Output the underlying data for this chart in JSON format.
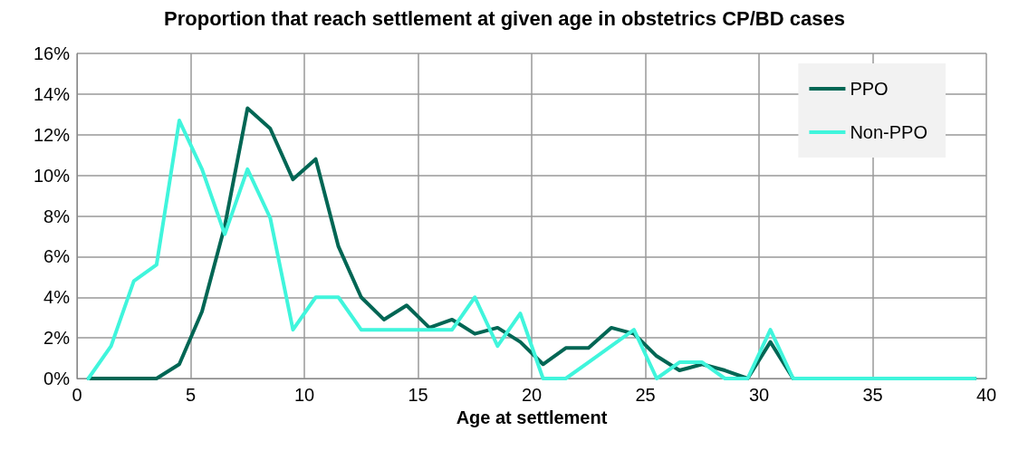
{
  "chart_data": {
    "type": "line",
    "title": "Proportion that reach settlement at given age in obstetrics CP/BD cases",
    "xlabel": "Age at settlement",
    "x": [
      0.5,
      1.5,
      2.5,
      3.5,
      4.5,
      5.5,
      6.5,
      7.5,
      8.5,
      9.5,
      10.5,
      11.5,
      12.5,
      13.5,
      14.5,
      15.5,
      16.5,
      17.5,
      18.5,
      19.5,
      20.5,
      21.5,
      22.5,
      23.5,
      24.5,
      25.5,
      26.5,
      27.5,
      28.5,
      29.5,
      30.5,
      31.5,
      32.5,
      33.5,
      34.5,
      35.5,
      36.5,
      37.5,
      38.5,
      39.5
    ],
    "series": [
      {
        "name": "PPO",
        "color": "#006654",
        "values": [
          0,
          0,
          0,
          0,
          0.7,
          3.3,
          7.5,
          13.3,
          12.3,
          9.8,
          10.8,
          6.5,
          4.0,
          2.9,
          3.6,
          2.5,
          2.9,
          2.2,
          2.5,
          1.8,
          0.7,
          1.5,
          1.5,
          2.5,
          2.2,
          1.1,
          0.4,
          0.7,
          0.4,
          0,
          1.8,
          0,
          0,
          0,
          0,
          0,
          0,
          0,
          0,
          0
        ]
      },
      {
        "name": "Non-PPO",
        "color": "#40f5dc",
        "values": [
          0,
          1.6,
          4.8,
          5.6,
          12.7,
          10.3,
          7.1,
          10.3,
          7.9,
          2.4,
          4.0,
          4.0,
          2.4,
          2.4,
          2.4,
          2.4,
          2.4,
          4.0,
          1.6,
          3.2,
          0,
          0,
          0.8,
          1.6,
          2.4,
          0,
          0.8,
          0.8,
          0,
          0,
          2.4,
          0,
          0,
          0,
          0,
          0,
          0,
          0,
          0,
          0
        ]
      }
    ],
    "xlim": [
      0,
      40
    ],
    "xticks": [
      0,
      5,
      10,
      15,
      20,
      25,
      30,
      35,
      40
    ],
    "ylim": [
      0,
      16
    ],
    "yticks": [
      {
        "value": 0,
        "label": "0%"
      },
      {
        "value": 2,
        "label": "2%"
      },
      {
        "value": 4,
        "label": "4%"
      },
      {
        "value": 6,
        "label": "6%"
      },
      {
        "value": 8,
        "label": "8%"
      },
      {
        "value": 10,
        "label": "10%"
      },
      {
        "value": 12,
        "label": "12%"
      },
      {
        "value": 14,
        "label": "14%"
      },
      {
        "value": 16,
        "label": "16%"
      }
    ],
    "grid": true,
    "legend": "top right",
    "marker": "none",
    "line_style": "solid"
  }
}
